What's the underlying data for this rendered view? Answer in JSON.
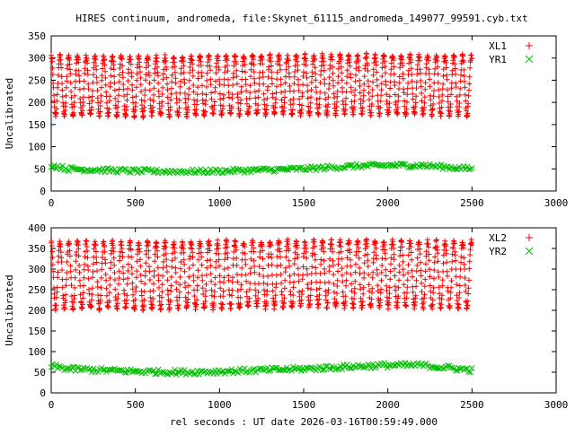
{
  "chart_data": {
    "title": "HIRES continuum, andromeda, file:Skynet_61115_andromeda_149077_99591.cyb.txt",
    "xlabel": "rel seconds : UT date 2026-03-16T00:59:49.000",
    "colors": {
      "series_a": "#ff0000",
      "series_b": "#00c000"
    },
    "panels": [
      {
        "type": "scatter",
        "ylabel": "Uncalibrated",
        "xlim": [
          0,
          3000
        ],
        "ylim": [
          0,
          350
        ],
        "x_ticks": [
          0,
          500,
          1000,
          1500,
          2000,
          2500,
          3000
        ],
        "y_ticks": [
          0,
          50,
          100,
          150,
          200,
          250,
          300,
          350
        ],
        "legend_position": "top-right",
        "series": [
          {
            "name": "XL1",
            "marker": "plus",
            "x_start": 0,
            "x_end": 2500,
            "n_points": 1250,
            "oscillation_period_s": 52,
            "lower_envelope": 165,
            "upper_envelope": 310,
            "trend_x": [
              0,
              500,
              1000,
              1500,
              2000,
              2500
            ],
            "trend_mid": [
              238,
              236,
              238,
              240,
              240,
              238
            ]
          },
          {
            "name": "YR1",
            "marker": "cross",
            "x_start": 0,
            "x_end": 2500,
            "n_points": 260,
            "trend_x": [
              0,
              100,
              500,
              800,
              1000,
              1500,
              1800,
              2000,
              2200,
              2500
            ],
            "trend_y": [
              58,
              50,
              45,
              44,
              45,
              50,
              56,
              58,
              58,
              50
            ],
            "spread": 5
          }
        ]
      },
      {
        "type": "scatter",
        "ylabel": "Uncalibrated",
        "xlim": [
          0,
          3000
        ],
        "ylim": [
          0,
          400
        ],
        "x_ticks": [
          0,
          500,
          1000,
          1500,
          2000,
          2500,
          3000
        ],
        "y_ticks": [
          0,
          50,
          100,
          150,
          200,
          250,
          300,
          350,
          400
        ],
        "legend_position": "top-right",
        "series": [
          {
            "name": "XL2",
            "marker": "plus",
            "x_start": 0,
            "x_end": 2500,
            "n_points": 1250,
            "oscillation_period_s": 52,
            "lower_envelope": 200,
            "upper_envelope": 375,
            "trend_x": [
              0,
              500,
              1000,
              1500,
              2000,
              2500
            ],
            "trend_mid": [
              286,
              284,
              286,
              288,
              288,
              286
            ]
          },
          {
            "name": "YR2",
            "marker": "cross",
            "x_start": 0,
            "x_end": 2500,
            "n_points": 260,
            "trend_x": [
              0,
              100,
              500,
              800,
              1000,
              1500,
              1800,
              2000,
              2200,
              2500
            ],
            "trend_y": [
              65,
              58,
              52,
              50,
              52,
              58,
              64,
              67,
              67,
              55
            ],
            "spread": 6
          }
        ]
      }
    ]
  }
}
